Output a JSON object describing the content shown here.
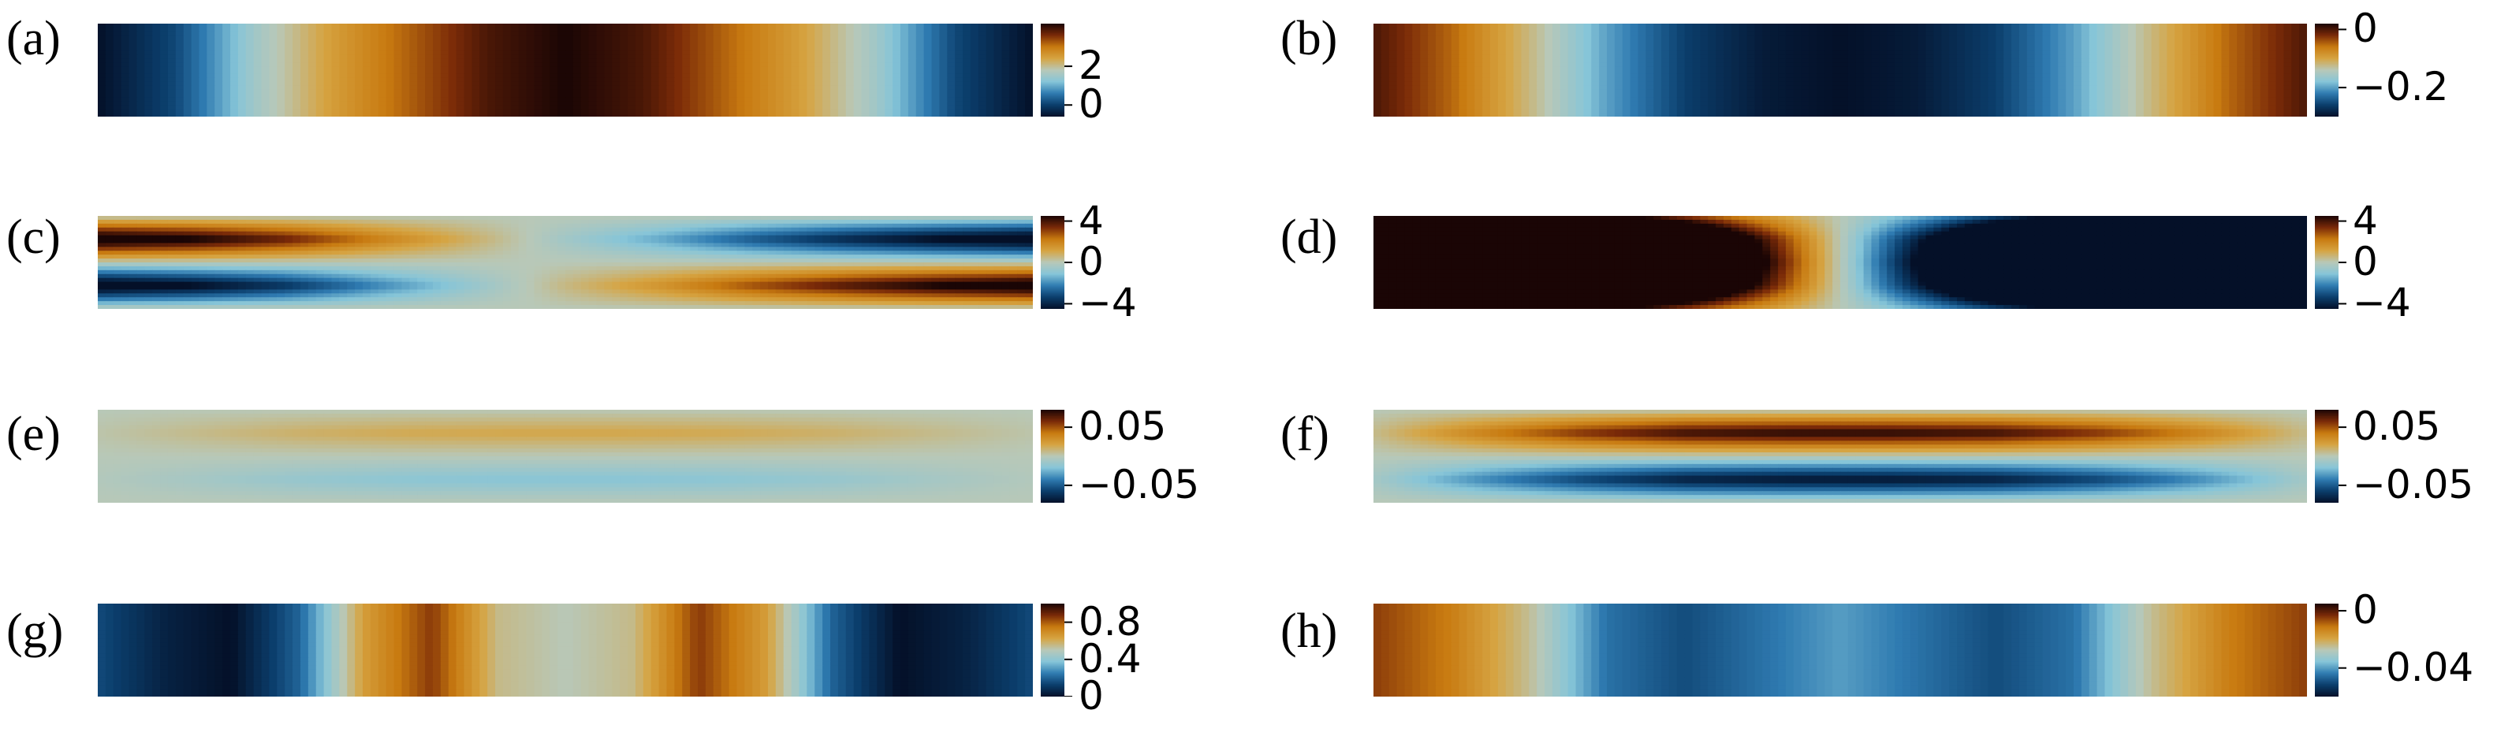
{
  "colormap": {
    "name": "diverging",
    "stops": [
      "#041028",
      "#0b3e6c",
      "#2f7bb1",
      "#86c5d8",
      "#b8c8b8",
      "#d6a442",
      "#c87a10",
      "#7a2a08",
      "#1a0505"
    ]
  },
  "chart_data": [
    {
      "id": "a",
      "label": "(a)",
      "type": "heatmap",
      "clim": [
        -0.6,
        4.2
      ],
      "colorbar_ticks": [
        {
          "value": 2,
          "label": "2"
        },
        {
          "value": 0,
          "label": "0"
        }
      ],
      "x_profile": [
        -0.6,
        0.1,
        1.5,
        2.5,
        3.2,
        3.9,
        4.2,
        3.9,
        3.2,
        2.5,
        1.5,
        0.1,
        -0.6
      ],
      "y_profile": [
        1,
        1,
        1,
        1,
        1
      ]
    },
    {
      "id": "b",
      "label": "(b)",
      "type": "heatmap",
      "clim": [
        -0.3,
        0.02
      ],
      "colorbar_ticks": [
        {
          "value": 0,
          "label": "0"
        },
        {
          "value": -0.2,
          "label": "−0.2"
        }
      ],
      "x_profile": [
        0.0,
        -0.05,
        -0.12,
        -0.2,
        -0.26,
        -0.29,
        -0.3,
        -0.29,
        -0.26,
        -0.2,
        -0.12,
        -0.05,
        0.0
      ],
      "y_profile": [
        1,
        1,
        1,
        1,
        1
      ]
    },
    {
      "id": "c",
      "label": "(c)",
      "type": "heatmap",
      "clim": [
        -4.5,
        4.5
      ],
      "colorbar_ticks": [
        {
          "value": 4,
          "label": "4"
        },
        {
          "value": 0,
          "label": "0"
        },
        {
          "value": -4,
          "label": "−4"
        }
      ],
      "x_profile": [
        -1.0,
        -0.9,
        -0.7,
        -0.4,
        -0.15,
        0.1,
        0.3,
        0.55,
        0.75,
        0.9,
        1.0
      ],
      "y_profile": [
        0,
        -1.2,
        0,
        1.2,
        0
      ]
    },
    {
      "id": "d",
      "label": "(d)",
      "type": "heatmap",
      "clim": [
        -4.5,
        4.5
      ],
      "colorbar_ticks": [
        {
          "value": 4,
          "label": "4"
        },
        {
          "value": 0,
          "label": "0"
        },
        {
          "value": -4,
          "label": "−4"
        }
      ],
      "x_profile": [
        4.5,
        4.3,
        3.8,
        2.8,
        1.3,
        0.0,
        -1.3,
        -2.8,
        -3.8,
        -4.3,
        -4.5
      ],
      "y_profile": [
        0.3,
        0.85,
        1.0,
        0.85,
        0.3
      ]
    },
    {
      "id": "e",
      "label": "(e)",
      "type": "heatmap",
      "clim": [
        -0.08,
        0.08
      ],
      "colorbar_ticks": [
        {
          "value": 0.05,
          "label": "0.05"
        },
        {
          "value": -0.05,
          "label": "−0.05"
        }
      ],
      "x_profile": [
        0.1,
        0.35,
        0.6,
        0.75,
        0.8,
        0.8,
        0.75,
        0.6,
        0.35,
        0.1
      ],
      "y_profile": [
        0,
        0.3,
        0,
        -0.3,
        0
      ]
    },
    {
      "id": "f",
      "label": "(f)",
      "type": "heatmap",
      "clim": [
        -0.08,
        0.08
      ],
      "colorbar_ticks": [
        {
          "value": 0.05,
          "label": "0.05"
        },
        {
          "value": -0.05,
          "label": "−0.05"
        }
      ],
      "x_profile": [
        0.1,
        0.45,
        0.75,
        0.95,
        1.0,
        1.0,
        0.95,
        0.75,
        0.45,
        0.1
      ],
      "y_profile": [
        0,
        1.0,
        0,
        -1.0,
        0
      ]
    },
    {
      "id": "g",
      "label": "(g)",
      "type": "heatmap",
      "clim": [
        0,
        1.0
      ],
      "colorbar_ticks": [
        {
          "value": 0.8,
          "label": "0.8"
        },
        {
          "value": 0.4,
          "label": "0.4"
        },
        {
          "value": 0,
          "label": "0"
        }
      ],
      "x_profile": [
        0.15,
        0.05,
        0.0,
        0.2,
        0.65,
        0.85,
        0.55,
        0.5,
        0.55,
        0.85,
        0.65,
        0.2,
        0.0,
        0.05,
        0.15
      ],
      "y_profile": [
        1,
        1,
        1,
        1,
        1
      ]
    },
    {
      "id": "h",
      "label": "(h)",
      "type": "heatmap",
      "clim": [
        -0.06,
        0.005
      ],
      "colorbar_ticks": [
        {
          "value": 0,
          "label": "0"
        },
        {
          "value": -0.04,
          "label": "−0.04"
        }
      ],
      "x_profile": [
        -0.005,
        -0.012,
        -0.025,
        -0.045,
        -0.05,
        -0.045,
        -0.04,
        -0.045,
        -0.05,
        -0.045,
        -0.025,
        -0.012,
        -0.005
      ],
      "y_profile": [
        1,
        1,
        1,
        1,
        1
      ]
    }
  ]
}
